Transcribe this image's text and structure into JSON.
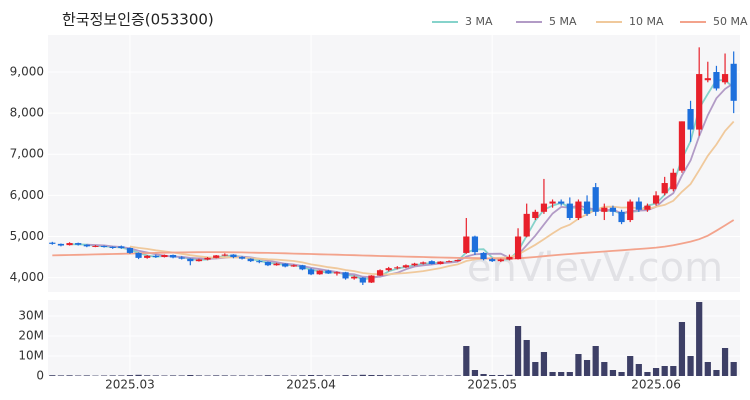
{
  "chart_data": {
    "type": "candlestick",
    "title": "한국정보인증(053300)",
    "watermark": "enVievV.com",
    "categories": [
      null,
      null,
      null,
      null,
      null,
      null,
      null,
      null,
      null,
      "2025.03",
      null,
      null,
      null,
      null,
      null,
      null,
      null,
      null,
      null,
      null,
      null,
      null,
      null,
      null,
      null,
      null,
      null,
      null,
      null,
      null,
      "2025.04",
      null,
      null,
      null,
      null,
      null,
      null,
      null,
      null,
      null,
      null,
      null,
      null,
      null,
      null,
      null,
      null,
      null,
      null,
      null,
      null,
      "2025.05",
      null,
      null,
      null,
      null,
      null,
      null,
      null,
      null,
      null,
      null,
      null,
      null,
      null,
      null,
      null,
      null,
      null,
      null,
      "2025.06",
      null,
      null,
      null,
      null,
      null,
      null,
      null,
      null,
      null
    ],
    "open": [
      4850,
      4820,
      4790,
      4840,
      4800,
      4760,
      4770,
      4750,
      4760,
      4720,
      4600,
      4480,
      4530,
      4500,
      4550,
      4490,
      4460,
      4400,
      4440,
      4480,
      4540,
      4560,
      4500,
      4460,
      4400,
      4380,
      4300,
      4340,
      4270,
      4300,
      4200,
      4080,
      4170,
      4100,
      4130,
      3980,
      4000,
      3880,
      4050,
      4180,
      4230,
      4250,
      4300,
      4340,
      4400,
      4330,
      4390,
      4400,
      4600,
      5000,
      4600,
      4450,
      4400,
      4440,
      4450,
      5000,
      5450,
      5600,
      5800,
      5850,
      5800,
      5450,
      5850,
      6200,
      5600,
      5700,
      5600,
      5400,
      5850,
      5650,
      5800,
      6050,
      6150,
      6600,
      8100,
      7600,
      8800,
      9000,
      8750,
      9200
    ],
    "high": [
      4870,
      4830,
      4860,
      4850,
      4810,
      4790,
      4780,
      4760,
      4780,
      4730,
      4610,
      4550,
      4560,
      4560,
      4560,
      4520,
      4470,
      4460,
      4500,
      4550,
      4590,
      4570,
      4520,
      4470,
      4430,
      4390,
      4360,
      4350,
      4320,
      4310,
      4230,
      4180,
      4190,
      4150,
      4140,
      4050,
      4010,
      4060,
      4200,
      4260,
      4280,
      4320,
      4360,
      4390,
      4420,
      4400,
      4420,
      4440,
      5450,
      5020,
      4620,
      4480,
      4460,
      4560,
      5200,
      5800,
      5650,
      6400,
      5900,
      5900,
      5950,
      5900,
      6000,
      6300,
      5800,
      5750,
      5650,
      5900,
      5950,
      5800,
      6100,
      6450,
      6650,
      7800,
      8300,
      9600,
      9250,
      9150,
      9450,
      9500
    ],
    "low": [
      4800,
      4760,
      4780,
      4780,
      4740,
      4740,
      4730,
      4700,
      4700,
      4580,
      4450,
      4460,
      4480,
      4490,
      4470,
      4440,
      4300,
      4390,
      4420,
      4470,
      4520,
      4470,
      4440,
      4380,
      4350,
      4280,
      4290,
      4250,
      4260,
      4180,
      4060,
      4070,
      4090,
      4050,
      3950,
      3950,
      3820,
      3870,
      4040,
      4150,
      4200,
      4230,
      4280,
      4320,
      4320,
      4320,
      4380,
      4390,
      4580,
      4550,
      4420,
      4380,
      4380,
      4420,
      4440,
      4980,
      5400,
      5550,
      5700,
      5750,
      5400,
      5400,
      5500,
      5500,
      5400,
      5500,
      5300,
      5350,
      5600,
      5600,
      5750,
      6000,
      6100,
      6550,
      7300,
      7450,
      8750,
      8550,
      8700,
      8000
    ],
    "close": [
      4820,
      4780,
      4840,
      4800,
      4760,
      4770,
      4750,
      4720,
      4720,
      4600,
      4480,
      4530,
      4500,
      4550,
      4490,
      4460,
      4400,
      4440,
      4480,
      4540,
      4560,
      4500,
      4460,
      4400,
      4380,
      4300,
      4340,
      4270,
      4300,
      4200,
      4080,
      4170,
      4100,
      4130,
      3980,
      4020,
      3880,
      4050,
      4180,
      4230,
      4250,
      4300,
      4340,
      4370,
      4330,
      4390,
      4400,
      4430,
      5000,
      4620,
      4450,
      4400,
      4440,
      4500,
      5000,
      5550,
      5600,
      5800,
      5850,
      5800,
      5450,
      5850,
      5550,
      5600,
      5700,
      5600,
      5350,
      5850,
      5650,
      5750,
      6000,
      6300,
      6550,
      7800,
      7600,
      8950,
      8850,
      8600,
      8950,
      8300
    ],
    "up_color": "#e8202b",
    "down_color": "#1d6fdc",
    "series": [
      {
        "name": "3 MA",
        "color": "#86d3cb",
        "values": [
          null,
          null,
          4813,
          4807,
          4800,
          4777,
          4760,
          4747,
          4730,
          4680,
          4600,
          4537,
          4503,
          4527,
          4513,
          4500,
          4450,
          4433,
          4440,
          4487,
          4527,
          4533,
          4507,
          4453,
          4413,
          4360,
          4340,
          4303,
          4303,
          4257,
          4193,
          4150,
          4117,
          4133,
          4070,
          4043,
          3960,
          3983,
          4037,
          4153,
          4220,
          4260,
          4297,
          4337,
          4347,
          4363,
          4373,
          4407,
          4610,
          4683,
          4690,
          4490,
          4430,
          4447,
          4647,
          5017,
          5383,
          5650,
          5750,
          5817,
          5700,
          5700,
          5617,
          5667,
          5617,
          5633,
          5550,
          5600,
          5617,
          5750,
          5800,
          6017,
          6283,
          6883,
          7317,
          8117,
          8467,
          8800,
          8800,
          8617
        ]
      },
      {
        "name": "5 MA",
        "color": "#b29bc6",
        "values": [
          null,
          null,
          null,
          null,
          4800,
          4794,
          4784,
          4760,
          4744,
          4712,
          4654,
          4610,
          4566,
          4532,
          4510,
          4506,
          4480,
          4468,
          4454,
          4464,
          4484,
          4504,
          4508,
          4492,
          4460,
          4408,
          4376,
          4338,
          4318,
          4282,
          4238,
          4204,
          4170,
          4136,
          4092,
          4080,
          4022,
          4012,
          4022,
          4072,
          4118,
          4202,
          4270,
          4298,
          4318,
          4346,
          4366,
          4384,
          4510,
          4568,
          4580,
          4580,
          4582,
          4482,
          4558,
          4788,
          5018,
          5290,
          5560,
          5720,
          5700,
          5750,
          5700,
          5650,
          5630,
          5660,
          5560,
          5620,
          5630,
          5640,
          5720,
          5910,
          6050,
          6480,
          6850,
          7440,
          7950,
          8360,
          8590,
          8730
        ]
      },
      {
        "name": "10 MA",
        "color": "#f0c99c",
        "values": [
          null,
          null,
          null,
          null,
          null,
          null,
          null,
          null,
          null,
          4756,
          4722,
          4697,
          4663,
          4638,
          4611,
          4580,
          4545,
          4517,
          4493,
          4487,
          4495,
          4492,
          4487,
          4472,
          4461,
          4445,
          4439,
          4422,
          4404,
          4370,
          4322,
          4289,
          4253,
          4226,
          4186,
          4158,
          4112,
          4090,
          4078,
          4081,
          4098,
          4111,
          4135,
          4159,
          4194,
          4231,
          4283,
          4321,
          4403,
          4442,
          4462,
          4472,
          4482,
          4495,
          4562,
          4678,
          4798,
          4935,
          5076,
          5206,
          5286,
          5431,
          5542,
          5652,
          5722,
          5727,
          5702,
          5707,
          5687,
          5667,
          5722,
          5767,
          5867,
          6087,
          6277,
          6612,
          6962,
          7237,
          7567,
          7797
        ]
      },
      {
        "name": "50 MA",
        "color": "#f3a38c",
        "values": [
          4540,
          4545,
          4550,
          4555,
          4560,
          4565,
          4570,
          4575,
          4580,
          4585,
          4590,
          4595,
          4600,
          4605,
          4610,
          4612,
          4615,
          4617,
          4620,
          4620,
          4618,
          4615,
          4612,
          4608,
          4604,
          4600,
          4595,
          4590,
          4585,
          4580,
          4574,
          4568,
          4562,
          4556,
          4550,
          4544,
          4538,
          4532,
          4526,
          4520,
          4515,
          4510,
          4505,
          4500,
          4495,
          4490,
          4485,
          4480,
          4476,
          4478,
          4470,
          4465,
          4462,
          4460,
          4470,
          4485,
          4500,
          4520,
          4540,
          4560,
          4575,
          4590,
          4605,
          4620,
          4635,
          4650,
          4665,
          4680,
          4695,
          4710,
          4730,
          4755,
          4785,
          4830,
          4875,
          4935,
          5020,
          5140,
          5270,
          5400
        ]
      }
    ],
    "ylim": [
      3650,
      9900
    ],
    "yticks": [
      {
        "value": 4000,
        "label": "4,000"
      },
      {
        "value": 5000,
        "label": "5,000"
      },
      {
        "value": 6000,
        "label": "6,000"
      },
      {
        "value": 7000,
        "label": "7,000"
      },
      {
        "value": 8000,
        "label": "8,000"
      },
      {
        "value": 9000,
        "label": "9,000"
      }
    ],
    "grid": true,
    "volume": {
      "color": "#3d3f66",
      "ylim": [
        0,
        38000000
      ],
      "yticks": [
        0,
        {
          "value": 10000000,
          "label": "10M"
        },
        {
          "value": 20000000,
          "label": "20M"
        },
        {
          "value": 30000000,
          "label": "30M"
        }
      ],
      "values": [
        400000,
        300000,
        350000,
        250000,
        300000,
        200000,
        250000,
        300000,
        280000,
        450000,
        600000,
        350000,
        300000,
        250000,
        300000,
        280000,
        500000,
        300000,
        250000,
        320000,
        300000,
        260000,
        280000,
        300000,
        250000,
        400000,
        300000,
        280000,
        260000,
        350000,
        500000,
        400000,
        300000,
        280000,
        450000,
        350000,
        600000,
        500000,
        450000,
        350000,
        300000,
        280000,
        300000,
        260000,
        300000,
        250000,
        280000,
        300000,
        15000000,
        3000000,
        1000000,
        500000,
        500000,
        600000,
        25000000,
        18000000,
        7000000,
        12000000,
        2000000,
        2000000,
        2000000,
        11000000,
        8000000,
        15000000,
        7000000,
        3000000,
        2000000,
        10000000,
        6000000,
        2000000,
        4000000,
        5000000,
        5000000,
        27000000,
        10000000,
        37000000,
        7000000,
        3000000,
        14000000,
        7000000
      ]
    }
  }
}
